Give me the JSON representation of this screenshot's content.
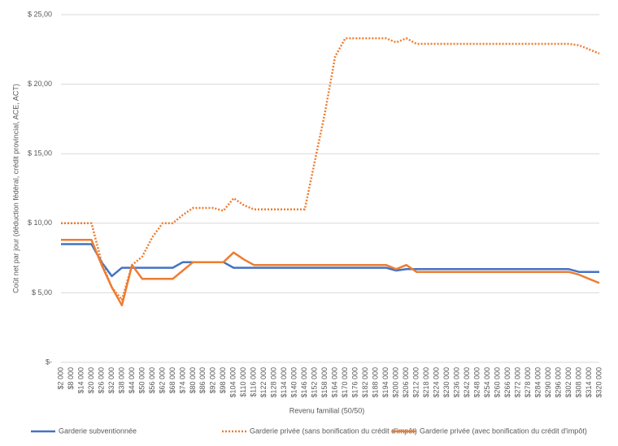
{
  "chart_data": {
    "type": "line",
    "x_label": "Revenu familial (50/50)",
    "y_label": "Coût net par jour (déduction fédéral, crédit provincial, ACE, ACT)",
    "categories": [
      "$2 000",
      "$8 000",
      "$14 000",
      "$20 000",
      "$26 000",
      "$32 000",
      "$38 000",
      "$44 000",
      "$50 000",
      "$56 000",
      "$62 000",
      "$68 000",
      "$74 000",
      "$80 000",
      "$86 000",
      "$92 000",
      "$98 000",
      "$104 000",
      "$110 000",
      "$116 000",
      "$122 000",
      "$128 000",
      "$134 000",
      "$140 000",
      "$146 000",
      "$152 000",
      "$158 000",
      "$164 000",
      "$170 000",
      "$176 000",
      "$182 000",
      "$188 000",
      "$194 000",
      "$200 000",
      "$206 000",
      "$212 000",
      "$218 000",
      "$224 000",
      "$230 000",
      "$236 000",
      "$242 000",
      "$248 000",
      "$254 000",
      "$260 000",
      "$266 000",
      "$272 000",
      "$278 000",
      "$284 000",
      "$290 000",
      "$296 000",
      "$302 000",
      "$308 000",
      "$314 000",
      "$320 000"
    ],
    "series": [
      {
        "name": "Garderie subventionnée",
        "color": "#4472c4",
        "style": "solid",
        "values": [
          8.5,
          8.5,
          8.5,
          8.5,
          7.2,
          6.2,
          6.8,
          6.8,
          6.8,
          6.8,
          6.8,
          6.8,
          7.2,
          7.2,
          7.2,
          7.2,
          7.2,
          6.8,
          6.8,
          6.8,
          6.8,
          6.8,
          6.8,
          6.8,
          6.8,
          6.8,
          6.8,
          6.8,
          6.8,
          6.8,
          6.8,
          6.8,
          6.8,
          6.6,
          6.7,
          6.7,
          6.7,
          6.7,
          6.7,
          6.7,
          6.7,
          6.7,
          6.7,
          6.7,
          6.7,
          6.7,
          6.7,
          6.7,
          6.7,
          6.7,
          6.7,
          6.5,
          6.5,
          6.5
        ]
      },
      {
        "name": "Garderie privée (sans bonification du crédit d'impôt)",
        "color": "#ed7d31",
        "style": "dotted",
        "values": [
          10,
          10,
          10,
          10,
          7.2,
          5.4,
          4.5,
          7.0,
          7.6,
          9.0,
          10.0,
          10.0,
          10.6,
          11.1,
          11.1,
          11.1,
          10.9,
          11.8,
          11.3,
          11.0,
          11.0,
          11.0,
          11.0,
          11.0,
          11.0,
          14.5,
          18.0,
          22.0,
          23.3,
          23.3,
          23.3,
          23.3,
          23.3,
          23.0,
          23.3,
          22.9,
          22.9,
          22.9,
          22.9,
          22.9,
          22.9,
          22.9,
          22.9,
          22.9,
          22.9,
          22.9,
          22.9,
          22.9,
          22.9,
          22.9,
          22.9,
          22.8,
          22.5,
          22.2
        ]
      },
      {
        "name": "Garderie privée (avec bonification du crédit d'impôt)",
        "color": "#ed7d31",
        "style": "solid",
        "values": [
          8.8,
          8.8,
          8.8,
          8.8,
          7.0,
          5.4,
          4.1,
          7.0,
          6.0,
          6.0,
          6.0,
          6.0,
          6.6,
          7.2,
          7.2,
          7.2,
          7.2,
          7.9,
          7.4,
          7.0,
          7.0,
          7.0,
          7.0,
          7.0,
          7.0,
          7.0,
          7.0,
          7.0,
          7.0,
          7.0,
          7.0,
          7.0,
          7.0,
          6.7,
          7.0,
          6.5,
          6.5,
          6.5,
          6.5,
          6.5,
          6.5,
          6.5,
          6.5,
          6.5,
          6.5,
          6.5,
          6.5,
          6.5,
          6.5,
          6.5,
          6.5,
          6.3,
          6.0,
          5.7
        ]
      }
    ],
    "ylim": [
      0,
      25
    ],
    "yticks": [
      {
        "value": 0,
        "label": "$-"
      },
      {
        "value": 5,
        "label": "$ 5,00"
      },
      {
        "value": 10,
        "label": "$ 10,00"
      },
      {
        "value": 15,
        "label": "$ 15,00"
      },
      {
        "value": 20,
        "label": "$ 20,00"
      },
      {
        "value": 25,
        "label": "$ 25,00"
      }
    ],
    "grid": true
  }
}
